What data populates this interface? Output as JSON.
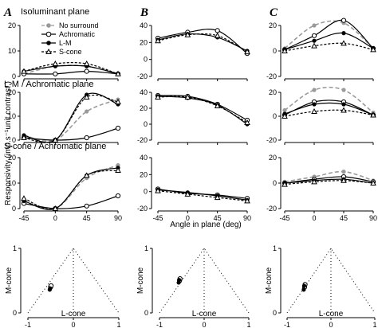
{
  "chart_data": {
    "type": "line",
    "column_labels": [
      "A",
      "B",
      "C"
    ],
    "row_titles": [
      "Isoluminant plane",
      "L-M / Achromatic plane",
      "S-cone / Achromatic plane"
    ],
    "ylabel": "Responsivity (imp.s⁻¹unit contrast )",
    "xlabel": "Angle in plane (deg)",
    "x_ticks": [
      "-45",
      "0",
      "45",
      "90"
    ],
    "legend": [
      {
        "name": "No surround",
        "style": "dashed-gray",
        "marker": "filled-gray-circle"
      },
      {
        "name": "Achromatic",
        "style": "solid",
        "marker": "open-circle"
      },
      {
        "name": "L-M",
        "style": "solid",
        "marker": "filled-circle"
      },
      {
        "name": "S-cone",
        "style": "dashed",
        "marker": "open-triangle"
      }
    ],
    "panels": [
      {
        "id": "A1",
        "col": 0,
        "row": 0,
        "ylim": [
          0,
          20
        ],
        "yticks": [
          0,
          10,
          20
        ],
        "series": [
          {
            "name": "No surround",
            "x": [
              -45,
              0,
              45,
              90
            ],
            "y": [
              1,
              4,
              4,
              1
            ]
          },
          {
            "name": "Achromatic",
            "x": [
              -45,
              0,
              45,
              90
            ],
            "y": [
              1,
              1,
              2,
              1
            ]
          },
          {
            "name": "L-M",
            "x": [
              -45,
              0,
              45,
              90
            ],
            "y": [
              2,
              4,
              4,
              1
            ]
          },
          {
            "name": "S-cone",
            "x": [
              -45,
              0,
              45,
              90
            ],
            "y": [
              2,
              5,
              5,
              1
            ]
          }
        ]
      },
      {
        "id": "A2",
        "col": 0,
        "row": 1,
        "ylim": [
          0,
          20
        ],
        "yticks": [
          0,
          10,
          20
        ],
        "series": [
          {
            "name": "No surround",
            "x": [
              -45,
              0,
              45,
              90
            ],
            "y": [
              2,
              0,
              12,
              17
            ]
          },
          {
            "name": "Achromatic",
            "x": [
              -45,
              0,
              45,
              90
            ],
            "y": [
              1,
              0,
              1,
              5
            ]
          },
          {
            "name": "L-M",
            "x": [
              -45,
              0,
              45,
              90
            ],
            "y": [
              2,
              0,
              19,
              15
            ]
          },
          {
            "name": "S-cone",
            "x": [
              -45,
              0,
              45,
              90
            ],
            "y": [
              1,
              0,
              18,
              16
            ]
          }
        ]
      },
      {
        "id": "A3",
        "col": 0,
        "row": 2,
        "ylim": [
          0,
          20
        ],
        "yticks": [
          0,
          10,
          20
        ],
        "series": [
          {
            "name": "No surround",
            "x": [
              -45,
              0,
              45,
              90
            ],
            "y": [
              3,
              0,
              12,
              17
            ]
          },
          {
            "name": "Achromatic",
            "x": [
              -45,
              0,
              45,
              90
            ],
            "y": [
              2,
              0,
              1,
              5
            ]
          },
          {
            "name": "L-M",
            "x": [
              -45,
              0,
              45,
              90
            ],
            "y": [
              3,
              0,
              13,
              16
            ]
          },
          {
            "name": "S-cone",
            "x": [
              -45,
              0,
              45,
              90
            ],
            "y": [
              4,
              0,
              13,
              15
            ]
          }
        ]
      },
      {
        "id": "B1",
        "col": 1,
        "row": 0,
        "ylim": [
          -20,
          40
        ],
        "yticks": [
          -20,
          0,
          20,
          40
        ],
        "series": [
          {
            "name": "Achromatic",
            "x": [
              -45,
              0,
              45,
              90
            ],
            "y": [
              25,
              32,
              34,
              7
            ]
          },
          {
            "name": "L-M",
            "x": [
              -45,
              0,
              45,
              90
            ],
            "y": [
              23,
              30,
              26,
              10
            ]
          },
          {
            "name": "S-cone",
            "x": [
              -45,
              0,
              45,
              90
            ],
            "y": [
              22,
              29,
              28,
              9
            ]
          }
        ]
      },
      {
        "id": "B2",
        "col": 1,
        "row": 1,
        "ylim": [
          -20,
          40
        ],
        "yticks": [
          -20,
          0,
          20,
          40
        ],
        "series": [
          {
            "name": "Achromatic",
            "x": [
              -45,
              0,
              45,
              90
            ],
            "y": [
              36,
              35,
              25,
              5
            ]
          },
          {
            "name": "L-M",
            "x": [
              -45,
              0,
              45,
              90
            ],
            "y": [
              35,
              33,
              24,
              0
            ]
          },
          {
            "name": "S-cone",
            "x": [
              -45,
              0,
              45,
              90
            ],
            "y": [
              34,
              34,
              23,
              2
            ]
          }
        ]
      },
      {
        "id": "B3",
        "col": 1,
        "row": 2,
        "ylim": [
          -20,
          40
        ],
        "yticks": [
          -20,
          0,
          20,
          40
        ],
        "series": [
          {
            "name": "Achromatic",
            "x": [
              -45,
              0,
              45,
              90
            ],
            "y": [
              3,
              -2,
              -4,
              -8
            ]
          },
          {
            "name": "L-M",
            "x": [
              -45,
              0,
              45,
              90
            ],
            "y": [
              2,
              -1,
              -5,
              -10
            ]
          },
          {
            "name": "S-cone",
            "x": [
              -45,
              0,
              45,
              90
            ],
            "y": [
              1,
              -3,
              -7,
              -11
            ]
          }
        ]
      },
      {
        "id": "C1",
        "col": 2,
        "row": 0,
        "ylim": [
          -20,
          20
        ],
        "yticks": [
          -20,
          0,
          20
        ],
        "series": [
          {
            "name": "No surround",
            "x": [
              -45,
              0,
              45,
              90
            ],
            "y": [
              2,
              20,
              22,
              2
            ]
          },
          {
            "name": "Achromatic",
            "x": [
              -45,
              0,
              45,
              90
            ],
            "y": [
              1,
              12,
              24,
              2
            ]
          },
          {
            "name": "L-M",
            "x": [
              -45,
              0,
              45,
              90
            ],
            "y": [
              1,
              8,
              14,
              2
            ]
          },
          {
            "name": "S-cone",
            "x": [
              -45,
              0,
              45,
              90
            ],
            "y": [
              0,
              4,
              6,
              1
            ]
          }
        ]
      },
      {
        "id": "C2",
        "col": 2,
        "row": 1,
        "ylim": [
          -20,
          20
        ],
        "yticks": [
          -20,
          0,
          20
        ],
        "series": [
          {
            "name": "No surround",
            "x": [
              -45,
              0,
              45,
              90
            ],
            "y": [
              5,
              22,
              22,
              3
            ]
          },
          {
            "name": "Achromatic",
            "x": [
              -45,
              0,
              45,
              90
            ],
            "y": [
              1,
              12,
              12,
              1
            ]
          },
          {
            "name": "L-M",
            "x": [
              -45,
              0,
              45,
              90
            ],
            "y": [
              2,
              10,
              10,
              1
            ]
          },
          {
            "name": "S-cone",
            "x": [
              -45,
              0,
              45,
              90
            ],
            "y": [
              0,
              4,
              5,
              1
            ]
          }
        ]
      },
      {
        "id": "C3",
        "col": 2,
        "row": 2,
        "ylim": [
          -20,
          20
        ],
        "yticks": [
          -20,
          0,
          20
        ],
        "series": [
          {
            "name": "No surround",
            "x": [
              -45,
              0,
              45,
              90
            ],
            "y": [
              1,
              5,
              9,
              2
            ]
          },
          {
            "name": "Achromatic",
            "x": [
              -45,
              0,
              45,
              90
            ],
            "y": [
              0,
              3,
              5,
              1
            ]
          },
          {
            "name": "L-M",
            "x": [
              -45,
              0,
              45,
              90
            ],
            "y": [
              0,
              2,
              3,
              0
            ]
          },
          {
            "name": "S-cone",
            "x": [
              -45,
              0,
              45,
              90
            ],
            "y": [
              -1,
              1,
              2,
              0
            ]
          }
        ]
      }
    ],
    "cone_plots": {
      "xlabel": "L-cone",
      "ylabel": "M-cone",
      "x_ticks": [
        "-1",
        "0",
        "1"
      ],
      "y_ticks": [
        "0",
        "1"
      ],
      "points": [
        [
          {
            "x": -0.5,
            "y": 0.4
          },
          {
            "x": -0.52,
            "y": 0.36
          },
          {
            "x": -0.49,
            "y": 0.42
          },
          {
            "x": -0.51,
            "y": 0.38
          }
        ],
        [
          {
            "x": -0.55,
            "y": 0.5
          },
          {
            "x": -0.57,
            "y": 0.47
          },
          {
            "x": -0.54,
            "y": 0.53
          },
          {
            "x": -0.56,
            "y": 0.51
          }
        ],
        [
          {
            "x": -0.6,
            "y": 0.4
          },
          {
            "x": -0.62,
            "y": 0.36
          },
          {
            "x": -0.59,
            "y": 0.44
          },
          {
            "x": -0.61,
            "y": 0.42
          }
        ]
      ]
    }
  }
}
